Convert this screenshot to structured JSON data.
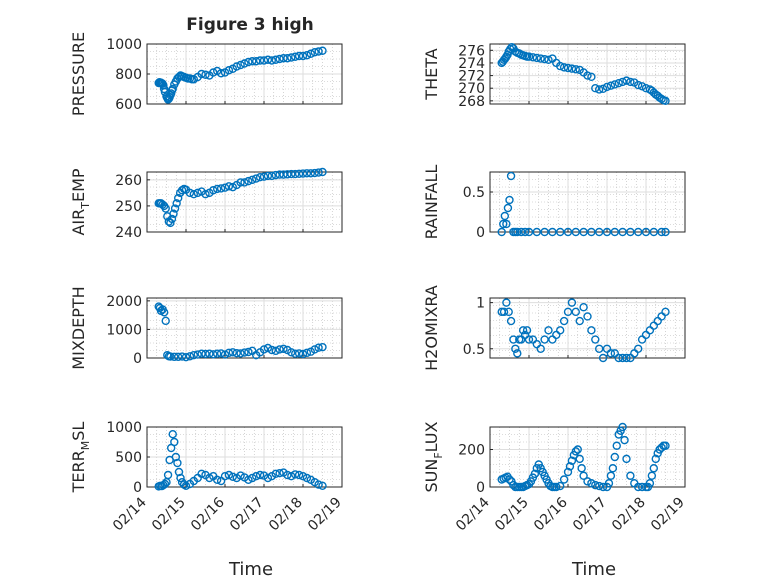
{
  "title": "Figure 3 high",
  "x_label": "Time",
  "x_ticks": [
    "02/14",
    "02/15",
    "02/16",
    "02/17",
    "02/18",
    "02/19"
  ],
  "colors": {
    "series": "#0072BD",
    "axis": "#262626"
  },
  "chart_data": [
    {
      "type": "scatter",
      "ylabel": "PRESSURE",
      "ylim": [
        600,
        1000
      ],
      "yticks": [
        600,
        800,
        1000
      ],
      "x_domain": [
        0,
        5
      ],
      "x": [
        0.3,
        0.32,
        0.34,
        0.36,
        0.38,
        0.4,
        0.42,
        0.44,
        0.46,
        0.5,
        0.52,
        0.54,
        0.56,
        0.58,
        0.6,
        0.62,
        0.64,
        0.66,
        0.7,
        0.74,
        0.78,
        0.82,
        0.86,
        0.9,
        0.95,
        1.0,
        1.05,
        1.1,
        1.15,
        1.2,
        1.3,
        1.4,
        1.5,
        1.6,
        1.7,
        1.8,
        1.9,
        2.0,
        2.1,
        2.2,
        2.3,
        2.4,
        2.5,
        2.6,
        2.7,
        2.8,
        2.9,
        3.0,
        3.1,
        3.2,
        3.3,
        3.4,
        3.5,
        3.6,
        3.7,
        3.8,
        3.9,
        4.0,
        4.1,
        4.2,
        4.3,
        4.4,
        4.5
      ],
      "values": [
        740,
        745,
        740,
        742,
        738,
        735,
        725,
        700,
        680,
        650,
        640,
        630,
        635,
        645,
        660,
        670,
        690,
        700,
        730,
        750,
        770,
        780,
        790,
        785,
        780,
        775,
        770,
        770,
        765,
        765,
        780,
        800,
        795,
        790,
        810,
        820,
        805,
        810,
        825,
        835,
        850,
        860,
        870,
        880,
        885,
        885,
        890,
        890,
        895,
        890,
        895,
        900,
        905,
        905,
        910,
        915,
        920,
        920,
        925,
        935,
        945,
        950,
        955
      ]
    },
    {
      "type": "scatter",
      "ylabel": "THETA",
      "ylim": [
        267.5,
        277
      ],
      "yticks": [
        268,
        270,
        272,
        274,
        276
      ],
      "x_domain": [
        0,
        5
      ],
      "x": [
        0.3,
        0.33,
        0.36,
        0.39,
        0.42,
        0.45,
        0.48,
        0.52,
        0.56,
        0.6,
        0.65,
        0.7,
        0.75,
        0.8,
        0.85,
        0.9,
        0.95,
        1.0,
        1.1,
        1.2,
        1.3,
        1.4,
        1.5,
        1.6,
        1.7,
        1.8,
        1.9,
        2.0,
        2.1,
        2.2,
        2.3,
        2.4,
        2.5,
        2.6,
        2.7,
        2.8,
        2.9,
        3.0,
        3.1,
        3.2,
        3.3,
        3.4,
        3.5,
        3.6,
        3.7,
        3.8,
        3.9,
        4.0,
        4.1,
        4.15,
        4.2,
        4.25,
        4.3,
        4.35,
        4.4,
        4.45,
        4.5
      ],
      "values": [
        274,
        274.2,
        274.5,
        274.7,
        275,
        275.3,
        275.8,
        276.2,
        276.5,
        276.3,
        275.8,
        275.6,
        275.5,
        275.3,
        275.2,
        275.1,
        275,
        275,
        274.9,
        274.8,
        274.7,
        274.6,
        274.5,
        274.7,
        274,
        273.5,
        273.3,
        273.2,
        273.1,
        273,
        272.9,
        272.5,
        272,
        271.8,
        270,
        269.8,
        269.9,
        270.2,
        270.4,
        270.6,
        270.8,
        271,
        271.2,
        271,
        270.9,
        270.5,
        270.3,
        270,
        269.8,
        269.6,
        269.3,
        269,
        268.8,
        268.5,
        268.3,
        268.1,
        268
      ]
    },
    {
      "type": "scatter",
      "ylabel": "AIR_TEMP",
      "ylim": [
        240,
        263
      ],
      "yticks": [
        240,
        250,
        260
      ],
      "x_domain": [
        0,
        5
      ],
      "x": [
        0.3,
        0.33,
        0.36,
        0.4,
        0.44,
        0.48,
        0.52,
        0.56,
        0.6,
        0.64,
        0.68,
        0.72,
        0.76,
        0.8,
        0.85,
        0.9,
        0.95,
        1.0,
        1.1,
        1.2,
        1.3,
        1.4,
        1.5,
        1.6,
        1.7,
        1.8,
        1.9,
        2.0,
        2.1,
        2.2,
        2.3,
        2.4,
        2.5,
        2.6,
        2.7,
        2.8,
        2.9,
        3.0,
        3.1,
        3.2,
        3.3,
        3.4,
        3.5,
        3.6,
        3.7,
        3.8,
        3.9,
        4.0,
        4.1,
        4.2,
        4.3,
        4.4,
        4.5
      ],
      "values": [
        251,
        251,
        251,
        250.5,
        250,
        249,
        246,
        244,
        243.5,
        245,
        247,
        249,
        251,
        253,
        255,
        256,
        256.5,
        256.2,
        255,
        254.5,
        255,
        255.5,
        254.5,
        255,
        256,
        256.5,
        256.7,
        257,
        257.5,
        257.2,
        258,
        259,
        259,
        259.5,
        260,
        260.5,
        261,
        261.2,
        261.5,
        261.5,
        261.8,
        262,
        262,
        262.1,
        262.2,
        262.2,
        262.3,
        262.4,
        262.5,
        262.5,
        262.6,
        262.8,
        263
      ]
    },
    {
      "type": "scatter",
      "ylabel": "RAINFALL",
      "ylim": [
        0,
        0.75
      ],
      "yticks": [
        0,
        0.5
      ],
      "x_domain": [
        0,
        5
      ],
      "x": [
        0.3,
        0.34,
        0.38,
        0.42,
        0.46,
        0.5,
        0.54,
        0.6,
        0.65,
        0.7,
        0.8,
        0.9,
        1.0,
        1.2,
        1.4,
        1.6,
        1.8,
        2.0,
        2.2,
        2.4,
        2.6,
        2.8,
        3.0,
        3.2,
        3.4,
        3.6,
        3.8,
        4.0,
        4.2,
        4.4,
        4.5
      ],
      "values": [
        0,
        0.1,
        0.2,
        0.1,
        0.3,
        0.4,
        0.7,
        0,
        0,
        0,
        0,
        0,
        0,
        0,
        0,
        0,
        0,
        0,
        0,
        0,
        0,
        0,
        0,
        0,
        0,
        0,
        0,
        0,
        0,
        0,
        0
      ]
    },
    {
      "type": "scatter",
      "ylabel": "MIXDEPTH",
      "ylim": [
        0,
        2100
      ],
      "yticks": [
        0,
        1000,
        2000
      ],
      "x_domain": [
        0,
        5
      ],
      "x": [
        0.3,
        0.33,
        0.36,
        0.4,
        0.44,
        0.48,
        0.52,
        0.56,
        0.6,
        0.7,
        0.8,
        0.9,
        1.0,
        1.1,
        1.2,
        1.3,
        1.4,
        1.5,
        1.6,
        1.7,
        1.8,
        1.9,
        2.0,
        2.1,
        2.2,
        2.3,
        2.4,
        2.5,
        2.6,
        2.7,
        2.8,
        2.9,
        3.0,
        3.1,
        3.2,
        3.3,
        3.4,
        3.5,
        3.6,
        3.7,
        3.8,
        3.9,
        4.0,
        4.1,
        4.2,
        4.3,
        4.4,
        4.5
      ],
      "values": [
        1800,
        1750,
        1650,
        1700,
        1600,
        1300,
        100,
        60,
        50,
        40,
        40,
        50,
        30,
        60,
        100,
        120,
        150,
        140,
        150,
        130,
        150,
        160,
        120,
        180,
        200,
        170,
        160,
        190,
        210,
        250,
        100,
        200,
        300,
        350,
        280,
        250,
        300,
        320,
        280,
        200,
        150,
        160,
        140,
        180,
        220,
        300,
        360,
        380
      ]
    },
    {
      "type": "scatter",
      "ylabel": "H2OMIXRA",
      "ylim": [
        0.4,
        1.05
      ],
      "yticks": [
        0.5,
        1
      ],
      "x_domain": [
        0,
        5
      ],
      "x": [
        0.3,
        0.36,
        0.42,
        0.48,
        0.54,
        0.6,
        0.65,
        0.7,
        0.75,
        0.8,
        0.85,
        0.9,
        0.95,
        1.0,
        1.1,
        1.2,
        1.3,
        1.4,
        1.5,
        1.6,
        1.7,
        1.8,
        1.9,
        2.0,
        2.1,
        2.2,
        2.3,
        2.4,
        2.5,
        2.6,
        2.7,
        2.8,
        2.9,
        3.0,
        3.1,
        3.2,
        3.3,
        3.4,
        3.5,
        3.6,
        3.7,
        3.8,
        3.9,
        4.0,
        4.1,
        4.2,
        4.3,
        4.4,
        4.5
      ],
      "values": [
        0.9,
        0.9,
        1.0,
        0.9,
        0.8,
        0.6,
        0.5,
        0.45,
        0.6,
        0.6,
        0.7,
        0.65,
        0.7,
        0.6,
        0.6,
        0.55,
        0.5,
        0.6,
        0.7,
        0.6,
        0.65,
        0.7,
        0.8,
        0.9,
        1.0,
        0.9,
        0.8,
        0.95,
        0.85,
        0.7,
        0.6,
        0.5,
        0.4,
        0.5,
        0.45,
        0.45,
        0.4,
        0.4,
        0.4,
        0.4,
        0.45,
        0.5,
        0.6,
        0.65,
        0.7,
        0.75,
        0.8,
        0.85,
        0.9
      ]
    },
    {
      "type": "scatter",
      "ylabel": "TERR_MSL",
      "ylim": [
        0,
        1000
      ],
      "yticks": [
        0,
        500,
        1000
      ],
      "x_domain": [
        0,
        5
      ],
      "x": [
        0.3,
        0.34,
        0.38,
        0.42,
        0.46,
        0.5,
        0.54,
        0.58,
        0.62,
        0.66,
        0.7,
        0.74,
        0.78,
        0.82,
        0.86,
        0.9,
        0.95,
        1.0,
        1.1,
        1.2,
        1.3,
        1.4,
        1.5,
        1.6,
        1.7,
        1.8,
        1.9,
        2.0,
        2.1,
        2.2,
        2.3,
        2.4,
        2.5,
        2.6,
        2.7,
        2.8,
        2.9,
        3.0,
        3.1,
        3.2,
        3.3,
        3.4,
        3.5,
        3.6,
        3.7,
        3.8,
        3.9,
        4.0,
        4.1,
        4.2,
        4.3,
        4.4,
        4.5
      ],
      "values": [
        10,
        20,
        15,
        30,
        50,
        80,
        200,
        450,
        650,
        880,
        750,
        500,
        400,
        250,
        150,
        80,
        40,
        20,
        50,
        100,
        150,
        220,
        200,
        150,
        180,
        120,
        100,
        180,
        200,
        170,
        150,
        190,
        160,
        120,
        150,
        180,
        200,
        190,
        150,
        180,
        220,
        230,
        240,
        200,
        180,
        210,
        200,
        180,
        150,
        120,
        80,
        40,
        20
      ]
    },
    {
      "type": "scatter",
      "ylabel": "SUN_FLUX",
      "ylim": [
        0,
        320
      ],
      "yticks": [
        0,
        200
      ],
      "x_domain": [
        0,
        5
      ],
      "x": [
        0.3,
        0.35,
        0.4,
        0.45,
        0.5,
        0.55,
        0.6,
        0.65,
        0.7,
        0.75,
        0.8,
        0.85,
        0.9,
        0.95,
        1.0,
        1.05,
        1.1,
        1.15,
        1.2,
        1.25,
        1.3,
        1.35,
        1.4,
        1.45,
        1.5,
        1.55,
        1.6,
        1.65,
        1.7,
        1.8,
        1.9,
        2.0,
        2.05,
        2.1,
        2.15,
        2.2,
        2.25,
        2.3,
        2.35,
        2.4,
        2.5,
        2.6,
        2.7,
        2.8,
        2.9,
        3.0,
        3.05,
        3.1,
        3.15,
        3.2,
        3.25,
        3.3,
        3.35,
        3.4,
        3.45,
        3.5,
        3.6,
        3.7,
        3.8,
        3.9,
        4.0,
        4.05,
        4.1,
        4.15,
        4.2,
        4.25,
        4.3,
        4.35,
        4.4,
        4.45,
        4.5
      ],
      "values": [
        40,
        45,
        50,
        55,
        40,
        30,
        10,
        0,
        0,
        0,
        0,
        0,
        5,
        10,
        15,
        30,
        50,
        70,
        100,
        120,
        100,
        80,
        60,
        40,
        20,
        5,
        0,
        0,
        0,
        5,
        40,
        80,
        110,
        140,
        170,
        190,
        200,
        150,
        100,
        60,
        30,
        20,
        10,
        5,
        0,
        0,
        20,
        60,
        100,
        160,
        220,
        280,
        300,
        320,
        250,
        150,
        60,
        20,
        0,
        0,
        0,
        0,
        20,
        60,
        100,
        150,
        180,
        200,
        210,
        220,
        220
      ]
    }
  ]
}
